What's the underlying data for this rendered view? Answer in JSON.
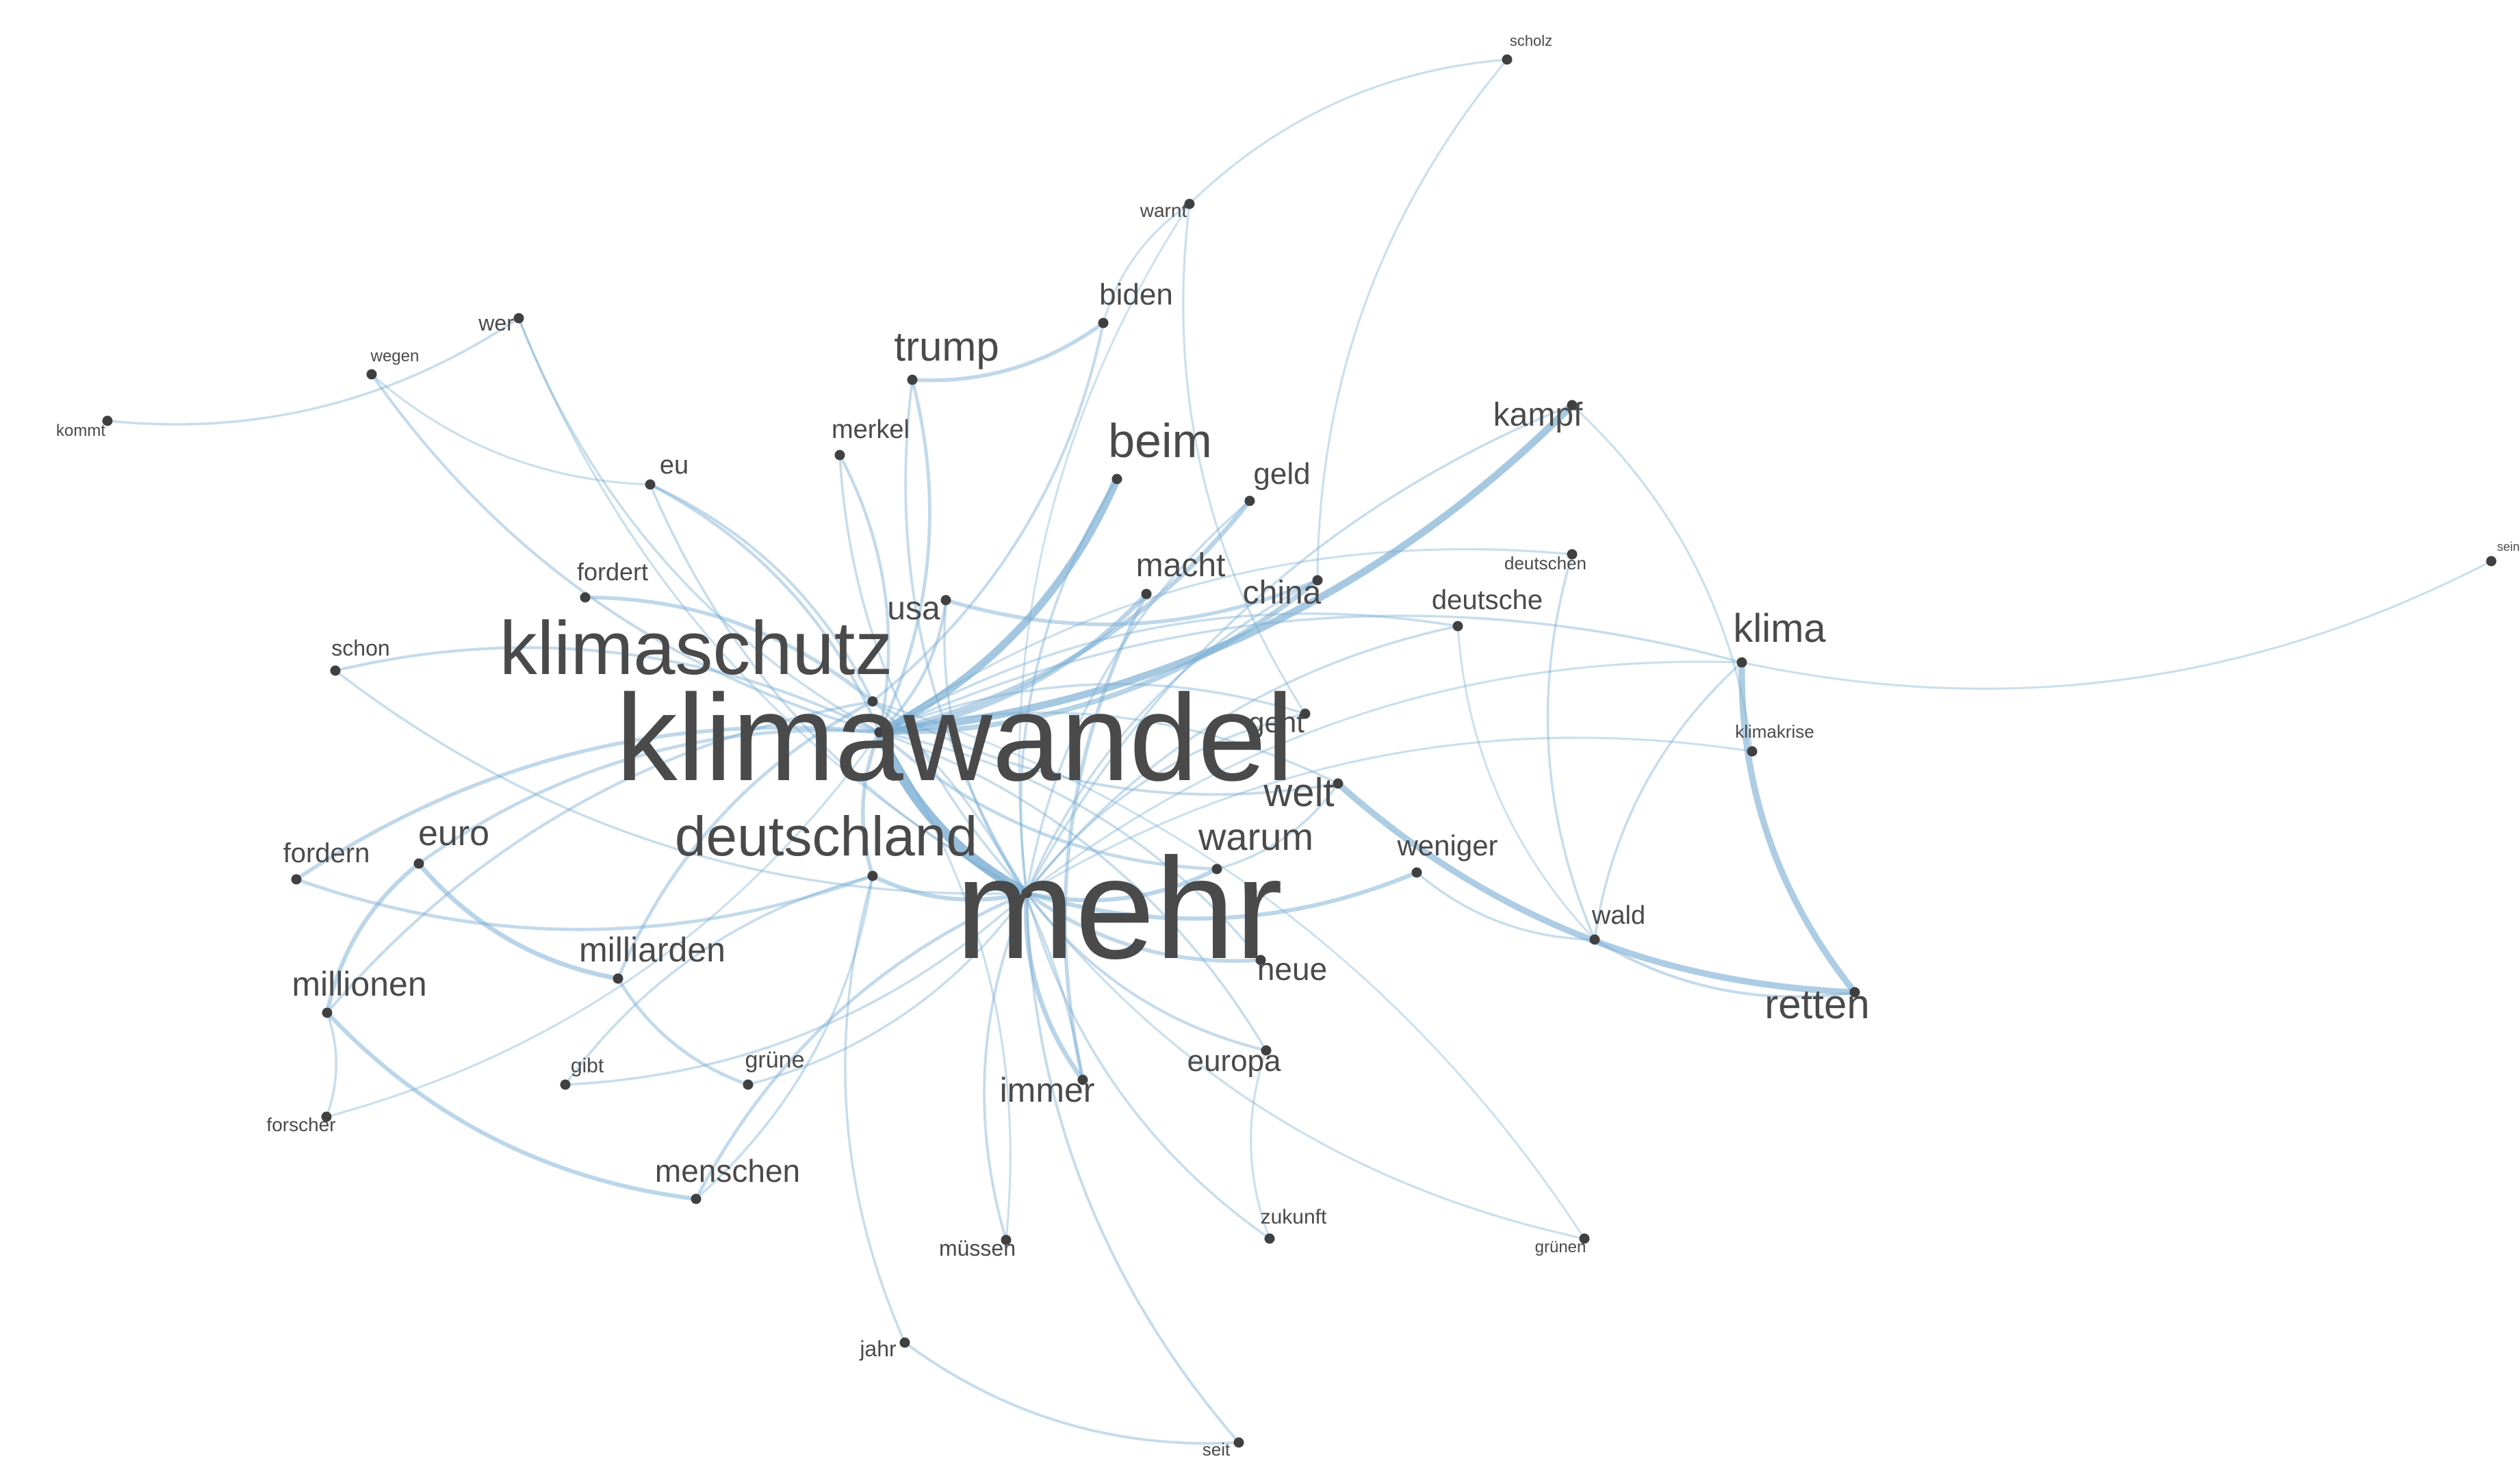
{
  "graph": {
    "node_color": "#404040",
    "edge_color": "#7aaed3",
    "nodes": [
      {
        "id": "mehr",
        "label": "mehr",
        "weight": 1.0
      },
      {
        "id": "klimawandel",
        "label": "klimawandel",
        "weight": 0.85
      },
      {
        "id": "klimaschutz",
        "label": "klimaschutz",
        "weight": 0.5
      },
      {
        "id": "deutschland",
        "label": "deutschland",
        "weight": 0.36
      },
      {
        "id": "beim",
        "label": "beim",
        "weight": 0.3
      },
      {
        "id": "trump",
        "label": "trump",
        "weight": 0.25
      },
      {
        "id": "retten",
        "label": "retten",
        "weight": 0.25
      },
      {
        "id": "klima",
        "label": "klima",
        "weight": 0.24
      },
      {
        "id": "welt",
        "label": "welt",
        "weight": 0.24
      },
      {
        "id": "warum",
        "label": "warum",
        "weight": 0.23
      },
      {
        "id": "euro",
        "label": "euro",
        "weight": 0.21
      },
      {
        "id": "millionen",
        "label": "millionen",
        "weight": 0.2
      },
      {
        "id": "milliarden",
        "label": "milliarden",
        "weight": 0.2
      },
      {
        "id": "immer",
        "label": "immer",
        "weight": 0.2
      },
      {
        "id": "macht",
        "label": "macht",
        "weight": 0.19
      },
      {
        "id": "china",
        "label": "china",
        "weight": 0.19
      },
      {
        "id": "usa",
        "label": "usa",
        "weight": 0.19
      },
      {
        "id": "kampf",
        "label": "kampf",
        "weight": 0.19
      },
      {
        "id": "menschen",
        "label": "menschen",
        "weight": 0.18
      },
      {
        "id": "neue",
        "label": "neue",
        "weight": 0.18
      },
      {
        "id": "europa",
        "label": "europa",
        "weight": 0.17
      },
      {
        "id": "geld",
        "label": "geld",
        "weight": 0.17
      },
      {
        "id": "biden",
        "label": "biden",
        "weight": 0.17
      },
      {
        "id": "geht",
        "label": "geht",
        "weight": 0.16
      },
      {
        "id": "weniger",
        "label": "weniger",
        "weight": 0.16
      },
      {
        "id": "fordern",
        "label": "fordern",
        "weight": 0.15
      },
      {
        "id": "deutsche",
        "label": "deutsche",
        "weight": 0.15
      },
      {
        "id": "merkel",
        "label": "merkel",
        "weight": 0.14
      },
      {
        "id": "eu",
        "label": "eu",
        "weight": 0.14
      },
      {
        "id": "wald",
        "label": "wald",
        "weight": 0.14
      },
      {
        "id": "fordert",
        "label": "fordert",
        "weight": 0.13
      },
      {
        "id": "grune",
        "label": "grüne",
        "weight": 0.12
      },
      {
        "id": "schon",
        "label": "schon",
        "weight": 0.11
      },
      {
        "id": "wer",
        "label": "wer",
        "weight": 0.11
      },
      {
        "id": "mussen",
        "label": "müssen",
        "weight": 0.11
      },
      {
        "id": "jahr",
        "label": "jahr",
        "weight": 0.11
      },
      {
        "id": "gibt",
        "label": "gibt",
        "weight": 0.1
      },
      {
        "id": "zukunft",
        "label": "zukunft",
        "weight": 0.1
      },
      {
        "id": "warnt",
        "label": "warnt",
        "weight": 0.09
      },
      {
        "id": "forscher",
        "label": "forscher",
        "weight": 0.09
      },
      {
        "id": "seit",
        "label": "seit",
        "weight": 0.08
      },
      {
        "id": "deutschen",
        "label": "deutschen",
        "weight": 0.08
      },
      {
        "id": "klimakrise",
        "label": "klimakrise",
        "weight": 0.08
      },
      {
        "id": "grunen",
        "label": "grünen",
        "weight": 0.07
      },
      {
        "id": "wegen",
        "label": "wegen",
        "weight": 0.07
      },
      {
        "id": "kommt",
        "label": "kommt",
        "weight": 0.07
      },
      {
        "id": "scholz",
        "label": "scholz",
        "weight": 0.06
      },
      {
        "id": "sein",
        "label": "sein",
        "weight": 0.04
      }
    ],
    "edges": [
      [
        "klimawandel",
        "mehr",
        1.0
      ],
      [
        "klimawandel",
        "beim",
        0.75
      ],
      [
        "klimawandel",
        "kampf",
        0.7
      ],
      [
        "welt",
        "retten",
        0.6
      ],
      [
        "klima",
        "retten",
        0.6
      ],
      [
        "klimawandel",
        "china",
        0.45
      ],
      [
        "klimawandel",
        "geld",
        0.4
      ],
      [
        "klimawandel",
        "macht",
        0.4
      ],
      [
        "mehr",
        "immer",
        0.4
      ],
      [
        "mehr",
        "warum",
        0.35
      ],
      [
        "euro",
        "milliarden",
        0.4
      ],
      [
        "euro",
        "millionen",
        0.35
      ],
      [
        "millionen",
        "menschen",
        0.35
      ],
      [
        "mehr",
        "weniger",
        0.35
      ],
      [
        "deutschland",
        "mehr",
        0.35
      ],
      [
        "klimawandel",
        "fordern",
        0.3
      ],
      [
        "klimaschutz",
        "fordert",
        0.3
      ],
      [
        "usa",
        "china",
        0.3
      ],
      [
        "trump",
        "biden",
        0.3
      ],
      [
        "mehr",
        "neue",
        0.3
      ],
      [
        "macht",
        "immer",
        0.3
      ],
      [
        "klimawandel",
        "euro",
        0.25
      ],
      [
        "klimawandel",
        "trump",
        0.25
      ],
      [
        "mehr",
        "menschen",
        0.25
      ],
      [
        "klimaschutz",
        "milliarden",
        0.25
      ],
      [
        "klimawandel",
        "deutschland",
        0.3
      ],
      [
        "klimawandel",
        "warum",
        0.25
      ],
      [
        "milliarden",
        "grune",
        0.25
      ],
      [
        "fordern",
        "deutschland",
        0.25
      ],
      [
        "klimawandel",
        "eu",
        0.22
      ],
      [
        "klimawandel",
        "merkel",
        0.22
      ],
      [
        "klimawandel",
        "usa",
        0.22
      ],
      [
        "klimawandel",
        "schon",
        0.2
      ],
      [
        "wegen",
        "klimawandel",
        0.2
      ],
      [
        "kommt",
        "wer",
        0.15
      ],
      [
        "klimaschutz",
        "eu",
        0.2
      ],
      [
        "klimaschutz",
        "biden",
        0.2
      ],
      [
        "klimaschutz",
        "welt",
        0.18
      ],
      [
        "klimaschutz",
        "millionen",
        0.2
      ],
      [
        "mehr",
        "europa",
        0.2
      ],
      [
        "mehr",
        "mussen",
        0.18
      ],
      [
        "mehr",
        "seit",
        0.18
      ],
      [
        "deutschland",
        "jahr",
        0.15
      ],
      [
        "deutschland",
        "gibt",
        0.15
      ],
      [
        "jahr",
        "seit",
        0.18
      ],
      [
        "wald",
        "retten",
        0.2
      ],
      [
        "weniger",
        "wald",
        0.15
      ],
      [
        "klima",
        "wald",
        0.15
      ],
      [
        "deutschen",
        "wald",
        0.15
      ],
      [
        "klima",
        "sein",
        0.12
      ],
      [
        "scholz",
        "warnt",
        0.12
      ],
      [
        "scholz",
        "china",
        0.12
      ],
      [
        "warnt",
        "geht",
        0.12
      ],
      [
        "warnt",
        "biden",
        0.12
      ],
      [
        "klimakrise",
        "kampf",
        0.12
      ],
      [
        "deutsche",
        "mehr",
        0.15
      ],
      [
        "deutsche",
        "klimawandel",
        0.15
      ],
      [
        "geht",
        "mehr",
        0.15
      ],
      [
        "geht",
        "klimawandel",
        0.15
      ],
      [
        "forscher",
        "millionen",
        0.15
      ],
      [
        "forscher",
        "klimawandel",
        0.12
      ],
      [
        "mehr",
        "zukunft",
        0.15
      ],
      [
        "europa",
        "zukunft",
        0.12
      ],
      [
        "mehr",
        "grunen",
        0.12
      ],
      [
        "grune",
        "mehr",
        0.15
      ],
      [
        "trump",
        "mehr",
        0.18
      ],
      [
        "beim",
        "mehr",
        0.18
      ],
      [
        "merkel",
        "mehr",
        0.15
      ],
      [
        "eu",
        "mehr",
        0.15
      ],
      [
        "wer",
        "klimawandel",
        0.15
      ],
      [
        "schon",
        "mehr",
        0.15
      ],
      [
        "gibt",
        "mehr",
        0.15
      ],
      [
        "warum",
        "welt",
        0.15
      ],
      [
        "klima",
        "klimawandel",
        0.15
      ],
      [
        "klimakrise",
        "mehr",
        0.12
      ],
      [
        "deutschen",
        "klimawandel",
        0.12
      ],
      [
        "klima",
        "mehr",
        0.12
      ],
      [
        "neue",
        "klimawandel",
        0.15
      ],
      [
        "immer",
        "klimaschutz",
        0.15
      ],
      [
        "europa",
        "klimawandel",
        0.15
      ],
      [
        "grunen",
        "klimaschutz",
        0.1
      ],
      [
        "menschen",
        "deutschland",
        0.15
      ],
      [
        "mussen",
        "klimawandel",
        0.12
      ],
      [
        "usa",
        "mehr",
        0.15
      ],
      [
        "china",
        "mehr",
        0.15
      ],
      [
        "geld",
        "mehr",
        0.15
      ],
      [
        "kampf",
        "mehr",
        0.15
      ],
      [
        "welt",
        "klimawandel",
        0.15
      ],
      [
        "deutsche",
        "wald",
        0.1
      ],
      [
        "warnt",
        "mehr",
        0.1
      ],
      [
        "wegen",
        "eu",
        0.12
      ],
      [
        "wer",
        "mehr",
        0.12
      ]
    ]
  }
}
